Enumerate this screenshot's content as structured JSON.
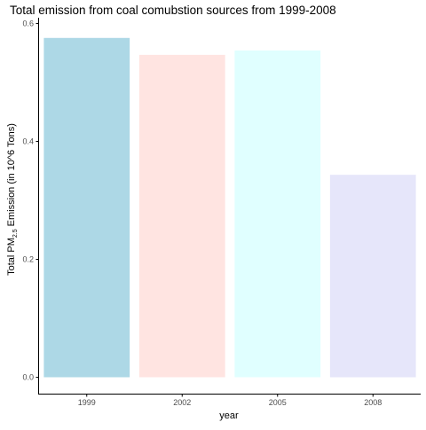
{
  "chart_data": {
    "type": "bar",
    "title": "Total emission from coal comubstion sources from 1999-2008",
    "xlabel": "year",
    "ylabel": {
      "prefix": "Total PM",
      "subscript": "2.5",
      "suffix": " Emission (in 10^6 Tons)"
    },
    "categories": [
      "1999",
      "2002",
      "2005",
      "2008"
    ],
    "values": [
      0.5755,
      0.5468,
      0.5542,
      0.3434
    ],
    "bar_colors": [
      "#add8e6",
      "#ffe4e1",
      "#e0ffff",
      "#e6e6fa"
    ],
    "yticks": [
      0.0,
      0.2,
      0.4,
      0.6
    ],
    "ytick_labels": [
      "0.0",
      "0.2",
      "0.4",
      "0.6"
    ],
    "ylim": [
      0,
      0.6
    ],
    "grid": false,
    "legend": "none"
  }
}
